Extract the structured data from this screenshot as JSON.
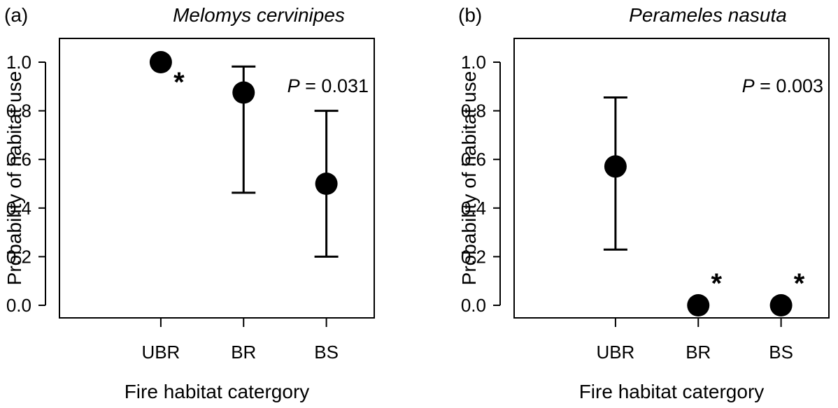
{
  "chart_data": [
    {
      "type": "scatter",
      "panel_label": "(a)",
      "title": "Melomys cervinipes",
      "xlabel": "Fire habitat catergory",
      "ylabel": "Probability of habitat use",
      "categories": [
        "UBR",
        "BR",
        "BS"
      ],
      "ylim": [
        0,
        1
      ],
      "yticks": [
        "0.0",
        "0.2",
        "0.4",
        "0.6",
        "0.8",
        "1.0"
      ],
      "p_value": {
        "prefix": "P",
        "text": " = 0.031"
      },
      "points": [
        {
          "x": "UBR",
          "y": 1.0,
          "lower": null,
          "upper": null,
          "star": "*"
        },
        {
          "x": "BR",
          "y": 0.875,
          "lower": 0.463,
          "upper": 0.982,
          "star": ""
        },
        {
          "x": "BS",
          "y": 0.5,
          "lower": 0.2,
          "upper": 0.8,
          "star": ""
        }
      ]
    },
    {
      "type": "scatter",
      "panel_label": "(b)",
      "title": "Perameles nasuta",
      "xlabel": "Fire habitat catergory",
      "ylabel": "Probability of habitat use",
      "categories": [
        "UBR",
        "BR",
        "BS"
      ],
      "ylim": [
        0,
        1
      ],
      "yticks": [
        "0.0",
        "0.2",
        "0.4",
        "0.6",
        "0.8",
        "1.0"
      ],
      "p_value": {
        "prefix": "P",
        "text": " = 0.003"
      },
      "points": [
        {
          "x": "UBR",
          "y": 0.571,
          "lower": 0.229,
          "upper": 0.855,
          "star": ""
        },
        {
          "x": "BR",
          "y": 0.0,
          "lower": null,
          "upper": null,
          "star": "*"
        },
        {
          "x": "BS",
          "y": 0.0,
          "lower": null,
          "upper": null,
          "star": "*"
        }
      ]
    }
  ]
}
